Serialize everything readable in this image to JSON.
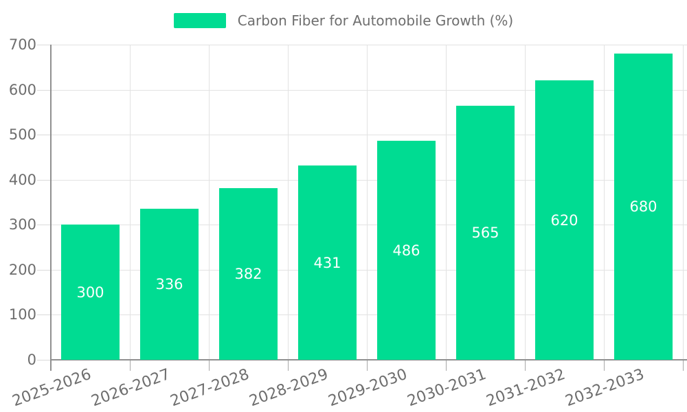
{
  "chart_data": {
    "type": "bar",
    "title": "Carbon Fiber for Automobile Growth (%)",
    "categories": [
      "2025-2026",
      "2026-2027",
      "2027-2028",
      "2028-2029",
      "2029-2030",
      "2030-2031",
      "2031-2032",
      "2032-2033"
    ],
    "values": [
      300,
      336,
      382,
      431,
      486,
      565,
      620,
      680
    ],
    "xlabel": "",
    "ylabel": "",
    "ylim": [
      0,
      700
    ],
    "yticks": [
      0,
      100,
      200,
      300,
      400,
      500,
      600,
      700
    ],
    "grid": true,
    "legend_position": "top-center",
    "x_label_rotation": -20,
    "value_labels_position": "inside-center",
    "colors": {
      "bar": "#00DC92",
      "axis": "#8f8f8f",
      "grid": "#e2e2e2",
      "y_tick": "#dadada",
      "x_tick": "#a8a8a8",
      "text": "#6e6e6e",
      "value_text": "#ffffff",
      "background": "#ffffff"
    }
  }
}
